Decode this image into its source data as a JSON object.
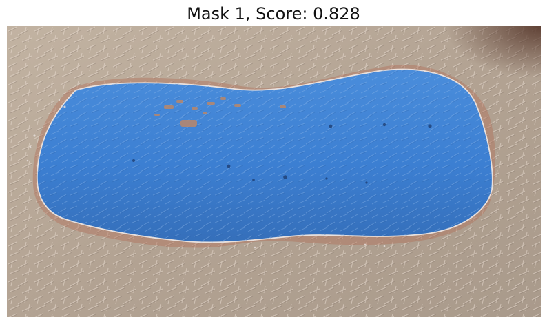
{
  "title": "Mask 1, Score: 0.828",
  "image": {
    "subject": "skin-patch-with-segmentation-mask",
    "colors": {
      "skin_base": "#b3a393",
      "skin_light": "#cbbfb0",
      "skin_dark": "#8e7f72",
      "lesion_rim": "#b2705a",
      "mask_fill": "#3b7fd4",
      "mask_outline": "#e9e1de",
      "corner_shadow": "#6b4a3c"
    }
  }
}
